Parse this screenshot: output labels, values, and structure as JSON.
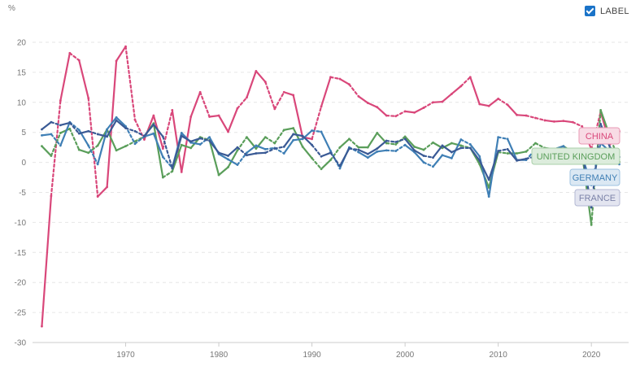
{
  "controls": {
    "label_toggle_text": "LABEL",
    "label_checked": true
  },
  "chart_data": {
    "type": "line",
    "unit_label": "%",
    "xlim": [
      1960,
      2024
    ],
    "ylim": [
      -30,
      20
    ],
    "x_ticks": [
      1970,
      1980,
      1990,
      2000,
      2010,
      2020
    ],
    "y_ticks": [
      20,
      15,
      10,
      5,
      0,
      -5,
      -10,
      -15,
      -20,
      -25,
      -30
    ],
    "grid": true,
    "x": [
      1961,
      1962,
      1963,
      1964,
      1965,
      1966,
      1967,
      1968,
      1969,
      1970,
      1971,
      1972,
      1973,
      1974,
      1975,
      1976,
      1977,
      1978,
      1979,
      1980,
      1981,
      1982,
      1983,
      1984,
      1985,
      1986,
      1987,
      1988,
      1989,
      1990,
      1991,
      1992,
      1993,
      1994,
      1995,
      1996,
      1997,
      1998,
      1999,
      2000,
      2001,
      2002,
      2003,
      2004,
      2005,
      2006,
      2007,
      2008,
      2009,
      2010,
      2011,
      2012,
      2013,
      2014,
      2015,
      2016,
      2017,
      2018,
      2019,
      2020,
      2021,
      2022,
      2023
    ],
    "series": [
      {
        "name": "CHINA",
        "color": "#d9477a",
        "label_fill": "#f8dbe5",
        "label_stroke": "#e89ab5",
        "label_text": "#d9477a",
        "values": [
          -27.3,
          -5.6,
          10.3,
          18.2,
          17.0,
          10.7,
          -5.7,
          -4.1,
          16.9,
          19.3,
          7.1,
          3.8,
          7.8,
          2.3,
          8.7,
          -1.6,
          7.6,
          11.7,
          7.6,
          7.8,
          5.1,
          9.0,
          10.8,
          15.2,
          13.4,
          8.9,
          11.7,
          11.2,
          4.2,
          3.9,
          9.3,
          14.2,
          13.9,
          13.0,
          11.0,
          9.9,
          9.2,
          7.8,
          7.7,
          8.5,
          8.3,
          9.1,
          10.0,
          10.1,
          11.4,
          12.7,
          14.2,
          9.7,
          9.4,
          10.6,
          9.6,
          7.9,
          7.8,
          7.4,
          7.0,
          6.8,
          6.9,
          6.7,
          6.0,
          2.2,
          8.4,
          3.0,
          5.2
        ]
      },
      {
        "name": "UNITED KINGDOM",
        "color": "#5a9e5a",
        "label_fill": "#dcecdc",
        "label_stroke": "#a8cfa8",
        "label_text": "#5a9e5a",
        "values": [
          2.7,
          1.1,
          4.9,
          5.6,
          2.1,
          1.6,
          2.8,
          5.5,
          2.0,
          2.7,
          3.5,
          4.3,
          6.5,
          -2.5,
          -1.5,
          2.9,
          2.4,
          4.2,
          3.7,
          -2.1,
          -0.8,
          2.0,
          4.2,
          2.3,
          4.2,
          3.2,
          5.4,
          5.7,
          2.6,
          0.7,
          -1.1,
          0.4,
          2.5,
          3.9,
          2.5,
          2.5,
          4.9,
          3.2,
          3.0,
          4.3,
          2.6,
          2.1,
          3.3,
          2.4,
          3.2,
          2.8,
          2.4,
          -0.3,
          -4.2,
          1.7,
          1.5,
          1.5,
          1.8,
          3.2,
          2.4,
          2.2,
          2.7,
          1.7,
          1.6,
          -10.4,
          8.7,
          4.3,
          0.1
        ]
      },
      {
        "name": "GERMANY",
        "color": "#3f7fb5",
        "label_fill": "#dbe8f3",
        "label_stroke": "#9dc2e0",
        "label_text": "#3f7fb5",
        "values": [
          4.5,
          4.7,
          2.8,
          6.7,
          5.4,
          2.8,
          -0.3,
          5.5,
          7.5,
          6.0,
          3.1,
          4.3,
          4.8,
          0.9,
          -0.9,
          4.9,
          3.3,
          3.0,
          4.2,
          1.4,
          0.5,
          -0.4,
          1.6,
          2.8,
          2.2,
          2.4,
          1.5,
          3.7,
          3.9,
          5.3,
          5.1,
          1.9,
          -1.0,
          2.5,
          1.7,
          0.8,
          1.8,
          2.0,
          1.9,
          2.9,
          1.7,
          0.0,
          -0.7,
          1.2,
          0.7,
          3.8,
          3.0,
          1.0,
          -5.7,
          4.2,
          3.9,
          0.4,
          0.4,
          2.2,
          1.5,
          2.2,
          2.7,
          1.0,
          1.1,
          -3.8,
          3.2,
          1.8,
          -0.3
        ]
      },
      {
        "name": "FRANCE",
        "color": "#3a5a95",
        "label_fill": "#e3e5f0",
        "label_stroke": "#b3b8d3",
        "label_text": "#7b82a8",
        "values": [
          5.5,
          6.7,
          6.2,
          6.6,
          4.8,
          5.2,
          4.7,
          4.3,
          7.0,
          5.7,
          5.2,
          4.4,
          6.3,
          4.3,
          -1.0,
          4.4,
          3.5,
          4.0,
          3.6,
          1.6,
          1.1,
          2.5,
          1.2,
          1.5,
          1.6,
          2.3,
          2.6,
          4.7,
          4.4,
          2.9,
          1.0,
          1.6,
          -0.6,
          2.3,
          2.1,
          1.4,
          2.3,
          3.6,
          3.4,
          3.9,
          2.0,
          1.1,
          0.8,
          2.8,
          1.7,
          2.4,
          2.4,
          0.3,
          -2.9,
          1.9,
          2.2,
          0.3,
          0.6,
          1.0,
          1.1,
          1.1,
          2.3,
          1.9,
          1.8,
          -7.5,
          6.4,
          2.5,
          0.9
        ]
      }
    ],
    "end_labels": [
      "CHINA",
      "UNITED KINGDOM",
      "GERMANY",
      "FRANCE"
    ]
  }
}
